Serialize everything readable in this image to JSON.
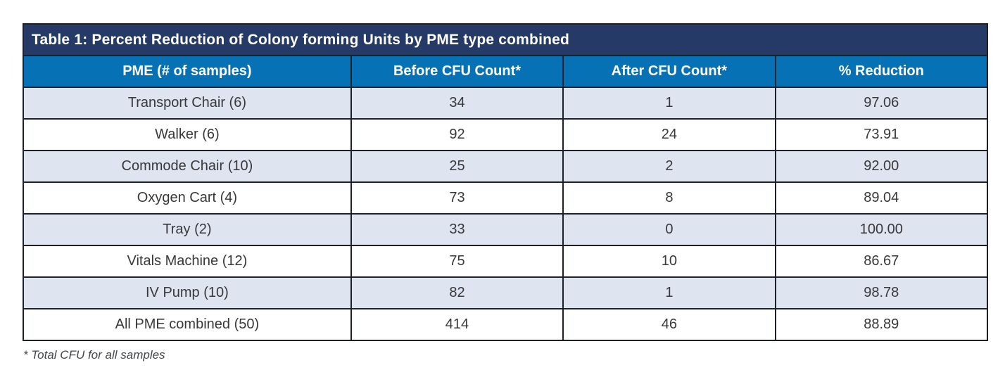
{
  "table": {
    "title": "Table 1: Percent Reduction of Colony forming Units by PME type combined",
    "columns": [
      "PME (# of samples)",
      "Before CFU Count*",
      "After CFU Count*",
      "% Reduction"
    ],
    "rows": [
      [
        "Transport Chair (6)",
        "34",
        "1",
        "97.06"
      ],
      [
        "Walker (6)",
        "92",
        "24",
        "73.91"
      ],
      [
        "Commode Chair (10)",
        "25",
        "2",
        "92.00"
      ],
      [
        "Oxygen Cart (4)",
        "73",
        "8",
        "89.04"
      ],
      [
        "Tray (2)",
        "33",
        "0",
        "100.00"
      ],
      [
        "Vitals Machine (12)",
        "75",
        "10",
        "86.67"
      ],
      [
        "IV Pump (10)",
        "82",
        "1",
        "98.78"
      ],
      [
        "All PME combined (50)",
        "414",
        "46",
        "88.89"
      ]
    ],
    "footnote": "* Total CFU for all samples",
    "colors": {
      "title_bar": "#253A66",
      "header_bg": "#0671B4",
      "row_alt_bg": "#DFE4F1",
      "row_bg": "#FFFFFF",
      "border": "#1B2029",
      "header_text": "#FFFFFF",
      "cell_text": "#38383A",
      "footnote_text": "#41464D"
    }
  },
  "chart_data": {
    "type": "table",
    "title": "Table 1: Percent Reduction of Colony forming Units by PME type combined",
    "columns": [
      "PME (# of samples)",
      "Before CFU Count*",
      "After CFU Count*",
      "% Reduction"
    ],
    "rows": [
      {
        "pme": "Transport Chair (6)",
        "before_cfu": 34,
        "after_cfu": 1,
        "pct_reduction": 97.06
      },
      {
        "pme": "Walker (6)",
        "before_cfu": 92,
        "after_cfu": 24,
        "pct_reduction": 73.91
      },
      {
        "pme": "Commode Chair (10)",
        "before_cfu": 25,
        "after_cfu": 2,
        "pct_reduction": 92.0
      },
      {
        "pme": "Oxygen Cart (4)",
        "before_cfu": 73,
        "after_cfu": 8,
        "pct_reduction": 89.04
      },
      {
        "pme": "Tray (2)",
        "before_cfu": 33,
        "after_cfu": 0,
        "pct_reduction": 100.0
      },
      {
        "pme": "Vitals Machine (12)",
        "before_cfu": 75,
        "after_cfu": 10,
        "pct_reduction": 86.67
      },
      {
        "pme": "IV Pump (10)",
        "before_cfu": 82,
        "after_cfu": 1,
        "pct_reduction": 98.78
      },
      {
        "pme": "All PME combined (50)",
        "before_cfu": 414,
        "after_cfu": 46,
        "pct_reduction": 88.89
      }
    ],
    "footnote": "* Total CFU for all samples"
  }
}
